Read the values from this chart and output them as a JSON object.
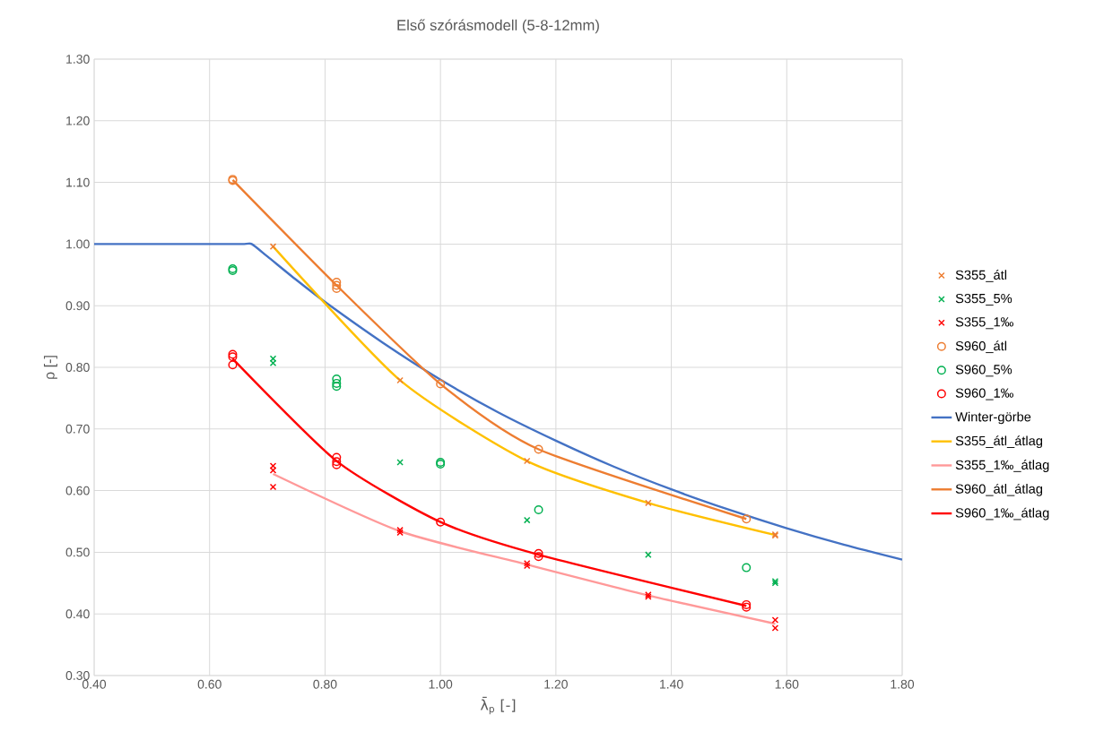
{
  "chart_data": {
    "type": "scatter",
    "title": "Első szórásmodell (5-8-12mm)",
    "xlabel": "λ̄$_{p}$ [-]",
    "ylabel": "ρ [-]",
    "xlim": [
      0.4,
      1.8
    ],
    "ylim": [
      0.3,
      1.3
    ],
    "xticks": [
      {
        "value": 0.4,
        "label": "0.40"
      },
      {
        "value": 0.6,
        "label": "0.60"
      },
      {
        "value": 0.8,
        "label": "0.80"
      },
      {
        "value": 1.0,
        "label": "1.00"
      },
      {
        "value": 1.2,
        "label": "1.20"
      },
      {
        "value": 1.4,
        "label": "1.40"
      },
      {
        "value": 1.6,
        "label": "1.60"
      },
      {
        "value": 1.8,
        "label": "1.80"
      }
    ],
    "yticks": [
      {
        "value": 0.3,
        "label": "0.30"
      },
      {
        "value": 0.4,
        "label": "0.40"
      },
      {
        "value": 0.5,
        "label": "0.50"
      },
      {
        "value": 0.6,
        "label": "0.60"
      },
      {
        "value": 0.7,
        "label": "0.70"
      },
      {
        "value": 0.8,
        "label": "0.80"
      },
      {
        "value": 0.9,
        "label": "0.90"
      },
      {
        "value": 1.0,
        "label": "1.00"
      },
      {
        "value": 1.1,
        "label": "1.10"
      },
      {
        "value": 1.2,
        "label": "1.20"
      },
      {
        "value": 1.3,
        "label": "1.30"
      }
    ],
    "grid": true,
    "legend": "right",
    "series": [
      {
        "name": "S355_átl",
        "marker": "cross",
        "color": "#ed7d31",
        "x": [
          0.71,
          0.93,
          1.15,
          1.36,
          1.58,
          1.58
        ],
        "values": [
          0.996,
          0.779,
          0.648,
          0.58,
          0.529,
          0.527
        ]
      },
      {
        "name": "S355_5%",
        "marker": "cross",
        "color": "#00b050",
        "x": [
          0.71,
          0.71,
          0.93,
          1.15,
          1.36,
          1.58,
          1.58
        ],
        "values": [
          0.814,
          0.807,
          0.646,
          0.552,
          0.496,
          0.453,
          0.45
        ]
      },
      {
        "name": "S355_1‰",
        "marker": "cross",
        "color": "#ff0000",
        "x": [
          0.71,
          0.71,
          0.71,
          0.93,
          0.93,
          1.15,
          1.15,
          1.36,
          1.36,
          1.58,
          1.58
        ],
        "values": [
          0.64,
          0.633,
          0.606,
          0.536,
          0.532,
          0.482,
          0.478,
          0.431,
          0.428,
          0.39,
          0.377
        ]
      },
      {
        "name": "S960_átl",
        "marker": "circle",
        "color": "#ed7d31",
        "x": [
          0.64,
          0.64,
          0.82,
          0.82,
          0.82,
          1.0,
          1.17,
          1.53
        ],
        "values": [
          1.105,
          1.103,
          0.938,
          0.933,
          0.928,
          0.773,
          0.667,
          0.554
        ]
      },
      {
        "name": "S960_5%",
        "marker": "circle",
        "color": "#00b050",
        "x": [
          0.64,
          0.64,
          0.82,
          0.82,
          0.82,
          1.0,
          1.0,
          1.17,
          1.53
        ],
        "values": [
          0.96,
          0.957,
          0.781,
          0.774,
          0.769,
          0.646,
          0.643,
          0.569,
          0.475
        ]
      },
      {
        "name": "S960_1‰",
        "marker": "circle",
        "color": "#ff0000",
        "x": [
          0.64,
          0.64,
          0.64,
          0.82,
          0.82,
          0.82,
          1.0,
          1.17,
          1.17,
          1.53,
          1.53
        ],
        "values": [
          0.821,
          0.817,
          0.804,
          0.654,
          0.647,
          0.642,
          0.549,
          0.498,
          0.493,
          0.415,
          0.411
        ]
      },
      {
        "name": "Winter-görbe",
        "type": "line",
        "color": "#4472c4",
        "x": [
          0.4,
          0.5,
          0.6,
          0.66,
          0.673,
          0.7,
          0.75,
          0.8,
          0.9,
          1.0,
          1.1,
          1.2,
          1.3,
          1.4,
          1.5,
          1.6,
          1.7,
          1.8
        ],
        "values": [
          1.0,
          1.0,
          1.0,
          1.0,
          1.0,
          0.98,
          0.942,
          0.906,
          0.84,
          0.78,
          0.727,
          0.681,
          0.639,
          0.602,
          0.569,
          0.539,
          0.512,
          0.488
        ]
      },
      {
        "name": "S355_átl_átlag",
        "type": "line",
        "color": "#ffc000",
        "x": [
          0.71,
          0.93,
          1.15,
          1.36,
          1.58
        ],
        "values": [
          0.996,
          0.779,
          0.648,
          0.58,
          0.528
        ]
      },
      {
        "name": "S355_1‰_átlag",
        "type": "line",
        "color": "#ff9999",
        "x": [
          0.71,
          0.93,
          1.15,
          1.36,
          1.58
        ],
        "values": [
          0.627,
          0.534,
          0.48,
          0.43,
          0.384
        ]
      },
      {
        "name": "S960_átl_átlag",
        "type": "line",
        "color": "#ed7d31",
        "x": [
          0.64,
          0.82,
          1.0,
          1.17,
          1.53
        ],
        "values": [
          1.104,
          0.933,
          0.773,
          0.667,
          0.554
        ]
      },
      {
        "name": "S960_1‰_átlag",
        "type": "line",
        "color": "#ff0000",
        "x": [
          0.64,
          0.82,
          1.0,
          1.17,
          1.53
        ],
        "values": [
          0.814,
          0.648,
          0.549,
          0.496,
          0.413
        ]
      }
    ]
  }
}
